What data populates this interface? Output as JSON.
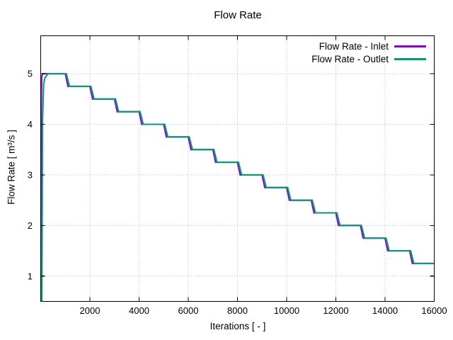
{
  "chart_data": {
    "type": "line",
    "title": "Flow Rate",
    "xlabel": "Iterations [ - ]",
    "ylabel": "Flow Rate [ m³/s ]",
    "xlim": [
      0,
      16000
    ],
    "ylim": [
      0.5,
      5.75
    ],
    "xticks": [
      2000,
      4000,
      6000,
      8000,
      10000,
      12000,
      14000,
      16000
    ],
    "yticks": [
      1,
      2,
      3,
      4,
      5
    ],
    "grid": true,
    "grid_style": "dotted-gray",
    "legend_position": "top-right-inside",
    "colors": {
      "axis": "#000000",
      "grid": "#b0b0b0",
      "background": "#ffffff"
    },
    "series": [
      {
        "name": "Flow Rate - Inlet",
        "color": "#9400d3",
        "points": [
          [
            8,
            0.4
          ],
          [
            20,
            4.3
          ],
          [
            40,
            4.95
          ],
          [
            90,
            5
          ],
          [
            1000,
            5
          ],
          [
            1110,
            4.75
          ],
          [
            2000,
            4.75
          ],
          [
            2110,
            4.5
          ],
          [
            3000,
            4.5
          ],
          [
            3110,
            4.25
          ],
          [
            4000,
            4.25
          ],
          [
            4110,
            4
          ],
          [
            5000,
            4
          ],
          [
            5110,
            3.75
          ],
          [
            6000,
            3.75
          ],
          [
            6110,
            3.5
          ],
          [
            7000,
            3.5
          ],
          [
            7110,
            3.25
          ],
          [
            8000,
            3.25
          ],
          [
            8110,
            3
          ],
          [
            9000,
            3
          ],
          [
            9110,
            2.75
          ],
          [
            10000,
            2.75
          ],
          [
            10110,
            2.5
          ],
          [
            11000,
            2.5
          ],
          [
            11110,
            2.25
          ],
          [
            12000,
            2.25
          ],
          [
            12110,
            2
          ],
          [
            13000,
            2
          ],
          [
            13110,
            1.75
          ],
          [
            14000,
            1.75
          ],
          [
            14110,
            1.5
          ],
          [
            15000,
            1.5
          ],
          [
            15110,
            1.25
          ],
          [
            16000,
            1.25
          ]
        ]
      },
      {
        "name": "Flow Rate - Outlet",
        "color": "#009e73",
        "points": [
          [
            45,
            0.4
          ],
          [
            75,
            4.1
          ],
          [
            120,
            4.8
          ],
          [
            170,
            4.92
          ],
          [
            300,
            5
          ],
          [
            1040,
            5
          ],
          [
            1170,
            4.75
          ],
          [
            2040,
            4.75
          ],
          [
            2170,
            4.5
          ],
          [
            3040,
            4.5
          ],
          [
            3170,
            4.25
          ],
          [
            4040,
            4.25
          ],
          [
            4170,
            4
          ],
          [
            5040,
            4
          ],
          [
            5170,
            3.75
          ],
          [
            6040,
            3.75
          ],
          [
            6170,
            3.5
          ],
          [
            7040,
            3.5
          ],
          [
            7170,
            3.25
          ],
          [
            8040,
            3.25
          ],
          [
            8170,
            3
          ],
          [
            9040,
            3
          ],
          [
            9170,
            2.75
          ],
          [
            10040,
            2.75
          ],
          [
            10170,
            2.5
          ],
          [
            11040,
            2.5
          ],
          [
            11170,
            2.25
          ],
          [
            12040,
            2.25
          ],
          [
            12170,
            2
          ],
          [
            13040,
            2
          ],
          [
            13170,
            1.75
          ],
          [
            14040,
            1.75
          ],
          [
            14170,
            1.5
          ],
          [
            15040,
            1.5
          ],
          [
            15170,
            1.25
          ],
          [
            16000,
            1.25
          ]
        ]
      }
    ]
  }
}
